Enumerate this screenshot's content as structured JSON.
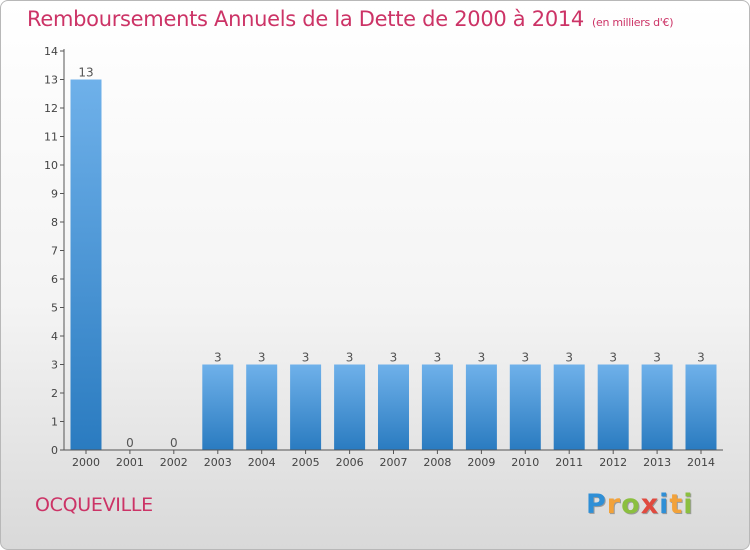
{
  "chart_data": {
    "type": "bar",
    "title": "Remboursements Annuels de la Dette de 2000 à 2014",
    "subtitle": "(en milliers d'€)",
    "categories": [
      "2000",
      "2001",
      "2002",
      "2003",
      "2004",
      "2005",
      "2006",
      "2007",
      "2008",
      "2009",
      "2010",
      "2011",
      "2012",
      "2013",
      "2014"
    ],
    "values": [
      13,
      0,
      0,
      3,
      3,
      3,
      3,
      3,
      3,
      3,
      3,
      3,
      3,
      3,
      3
    ],
    "ylim": [
      0,
      14
    ],
    "yticks": [
      0,
      1,
      2,
      3,
      4,
      5,
      6,
      7,
      8,
      9,
      10,
      11,
      12,
      13,
      14
    ],
    "xlabel": "",
    "ylabel": "",
    "grid": false,
    "bar_color_top": "#6fb1ea",
    "bar_color_bottom": "#2a7bc0"
  },
  "footer": {
    "commune": "OCQUEVILLE",
    "logo_letters": [
      "P",
      "r",
      "o",
      "x",
      "i",
      "t",
      "i"
    ],
    "logo_colors": [
      "#2f8fd6",
      "#f2a23a",
      "#8bbf3f",
      "#e04a3f",
      "#2f8fd6",
      "#f2a23a",
      "#8bbf3f"
    ]
  },
  "colors": {
    "title": "#cc3366"
  }
}
